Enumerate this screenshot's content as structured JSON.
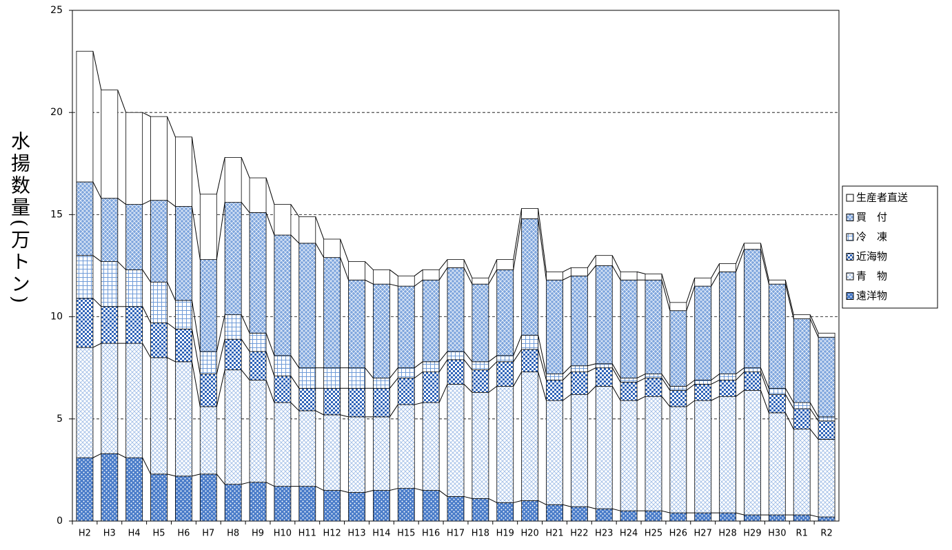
{
  "chart_data": {
    "type": "stacked_bar",
    "y_label": "水揚数量(万トン)",
    "categories": [
      "H2",
      "H3",
      "H4",
      "H5",
      "H6",
      "H7",
      "H8",
      "H9",
      "H10",
      "H11",
      "H12",
      "H13",
      "H14",
      "H15",
      "H16",
      "H17",
      "H18",
      "H19",
      "H20",
      "H21",
      "H22",
      "H23",
      "H24",
      "H25",
      "H26",
      "H27",
      "H28",
      "H29",
      "H30",
      "R1",
      "R2"
    ],
    "series": [
      {
        "name": "遠洋物",
        "color": "#4a7cc9",
        "values": [
          3.1,
          3.3,
          3.1,
          2.3,
          2.2,
          2.3,
          1.8,
          1.9,
          1.7,
          1.7,
          1.5,
          1.4,
          1.5,
          1.6,
          1.5,
          1.2,
          1.1,
          0.9,
          1.0,
          0.8,
          0.7,
          0.6,
          0.5,
          0.5,
          0.4,
          0.4,
          0.4,
          0.3,
          0.3,
          0.3,
          0.2
        ]
      },
      {
        "name": "青　物",
        "color": "#9dbbe6",
        "values": [
          5.4,
          5.4,
          5.6,
          5.7,
          5.6,
          3.3,
          5.6,
          5.0,
          4.1,
          3.7,
          3.7,
          3.7,
          3.6,
          4.1,
          4.3,
          5.5,
          5.2,
          5.7,
          6.3,
          5.1,
          5.5,
          6.0,
          5.4,
          5.6,
          5.2,
          5.5,
          5.7,
          6.1,
          5.0,
          4.2,
          3.8
        ]
      },
      {
        "name": "近海物",
        "color": "#2e63b8",
        "values": [
          2.4,
          1.8,
          1.8,
          1.7,
          1.6,
          1.6,
          1.5,
          1.4,
          1.3,
          1.1,
          1.3,
          1.4,
          1.4,
          1.3,
          1.5,
          1.2,
          1.1,
          1.2,
          1.1,
          1.0,
          1.1,
          0.9,
          0.9,
          0.9,
          0.8,
          0.8,
          0.8,
          0.9,
          0.9,
          1.0,
          0.9
        ]
      },
      {
        "name": "冷　凍",
        "color": "#6f9bd8",
        "values": [
          2.1,
          2.2,
          1.8,
          2.0,
          1.4,
          1.1,
          1.2,
          0.9,
          1.0,
          1.0,
          1.0,
          1.0,
          0.5,
          0.5,
          0.5,
          0.4,
          0.4,
          0.3,
          0.7,
          0.3,
          0.3,
          0.2,
          0.2,
          0.2,
          0.2,
          0.2,
          0.3,
          0.2,
          0.3,
          0.3,
          0.2
        ]
      },
      {
        "name": "買　付",
        "color": "#7fa6dd",
        "values": [
          3.6,
          3.1,
          3.2,
          4.0,
          4.6,
          4.5,
          5.5,
          5.9,
          5.9,
          6.1,
          5.4,
          4.3,
          4.6,
          4.0,
          4.0,
          4.1,
          3.8,
          4.2,
          5.7,
          4.6,
          4.4,
          4.8,
          4.8,
          4.6,
          3.7,
          4.6,
          5.0,
          5.8,
          5.1,
          4.1,
          3.9
        ]
      },
      {
        "name": "生産者直送",
        "color": "#ffffff",
        "values": [
          6.4,
          5.3,
          4.5,
          4.1,
          3.4,
          3.2,
          2.2,
          1.7,
          1.5,
          1.3,
          0.9,
          0.9,
          0.7,
          0.5,
          0.5,
          0.4,
          0.3,
          0.5,
          0.5,
          0.4,
          0.4,
          0.5,
          0.4,
          0.3,
          0.4,
          0.4,
          0.4,
          0.3,
          0.2,
          0.2,
          0.2
        ]
      }
    ],
    "ylim": [
      0,
      25
    ],
    "yticks": [
      0,
      5,
      10,
      15,
      20,
      25
    ],
    "grid": true,
    "legend": "right"
  }
}
